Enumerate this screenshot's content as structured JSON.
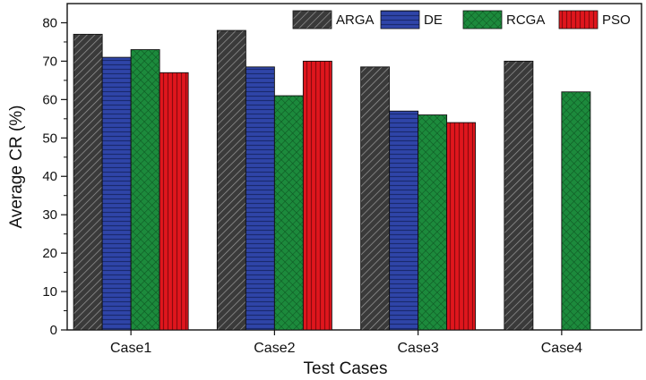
{
  "chart_data": {
    "type": "bar",
    "title": "",
    "xlabel": "Test Cases",
    "ylabel": "Average CR (%)",
    "ylim": [
      0,
      85
    ],
    "yticks": [
      0,
      10,
      20,
      30,
      40,
      50,
      60,
      70,
      80
    ],
    "categories": [
      "Case1",
      "Case2",
      "Case3",
      "Case4"
    ],
    "series": [
      {
        "name": "ARGA",
        "values": [
          77,
          78,
          68.5,
          70
        ],
        "color": "#3a3a3a",
        "pattern": "diagonal-hatch"
      },
      {
        "name": "DE",
        "values": [
          71,
          68.5,
          57,
          null
        ],
        "color": "#2f45a8",
        "pattern": "horizontal-lines"
      },
      {
        "name": "RCGA",
        "values": [
          73,
          61,
          56,
          62
        ],
        "color": "#1c8a3c",
        "pattern": "crosshatch"
      },
      {
        "name": "PSO",
        "values": [
          67,
          70,
          54,
          null
        ],
        "color": "#e0161d",
        "pattern": "vertical-lines"
      }
    ],
    "legend_position": "top-right",
    "grid": false
  }
}
